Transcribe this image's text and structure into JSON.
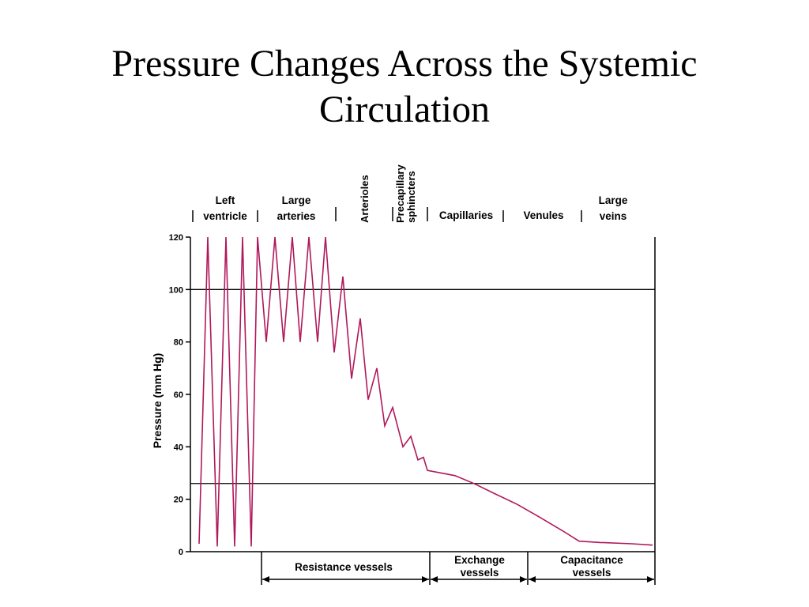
{
  "slide": {
    "title_line1": "Pressure Changes Across the Systemic",
    "title_line2": "Circulation"
  },
  "chart_data": {
    "type": "line",
    "ylabel": "Pressure (mm Hg)",
    "ylim": [
      0,
      120
    ],
    "yticks": [
      0,
      20,
      40,
      60,
      80,
      100,
      120
    ],
    "reference_lines": [
      100,
      26
    ],
    "grid": false,
    "colors": {
      "line": "#b0185a",
      "axis": "#000000"
    },
    "segments": [
      {
        "label": [
          "Left",
          "ventricle"
        ],
        "orientation": "horizontal"
      },
      {
        "label": [
          "Large",
          "arteries"
        ],
        "orientation": "horizontal"
      },
      {
        "label": [
          "Arterioles"
        ],
        "orientation": "vertical"
      },
      {
        "label": [
          "Precapillary",
          "sphincters"
        ],
        "orientation": "vertical"
      },
      {
        "label": [
          "Capillaries"
        ],
        "orientation": "horizontal"
      },
      {
        "label": [
          "Venules"
        ],
        "orientation": "horizontal"
      },
      {
        "label": [
          "Large",
          "veins"
        ],
        "orientation": "horizontal"
      }
    ],
    "vessel_groups": [
      {
        "label": [
          "Resistance vessels"
        ]
      },
      {
        "label": [
          "Exchange",
          "vessels"
        ]
      },
      {
        "label": [
          "Capacitance",
          "vessels"
        ]
      }
    ],
    "series": [
      {
        "y": [
          3,
          120,
          2,
          120,
          2,
          120,
          2,
          120,
          80,
          120,
          80,
          120,
          80,
          120,
          80,
          120,
          76,
          105,
          66,
          89,
          58,
          70,
          48,
          55,
          40,
          44,
          35,
          36,
          31,
          29,
          26,
          22,
          18,
          13,
          8,
          4,
          3.5,
          3,
          2.5
        ]
      }
    ]
  }
}
